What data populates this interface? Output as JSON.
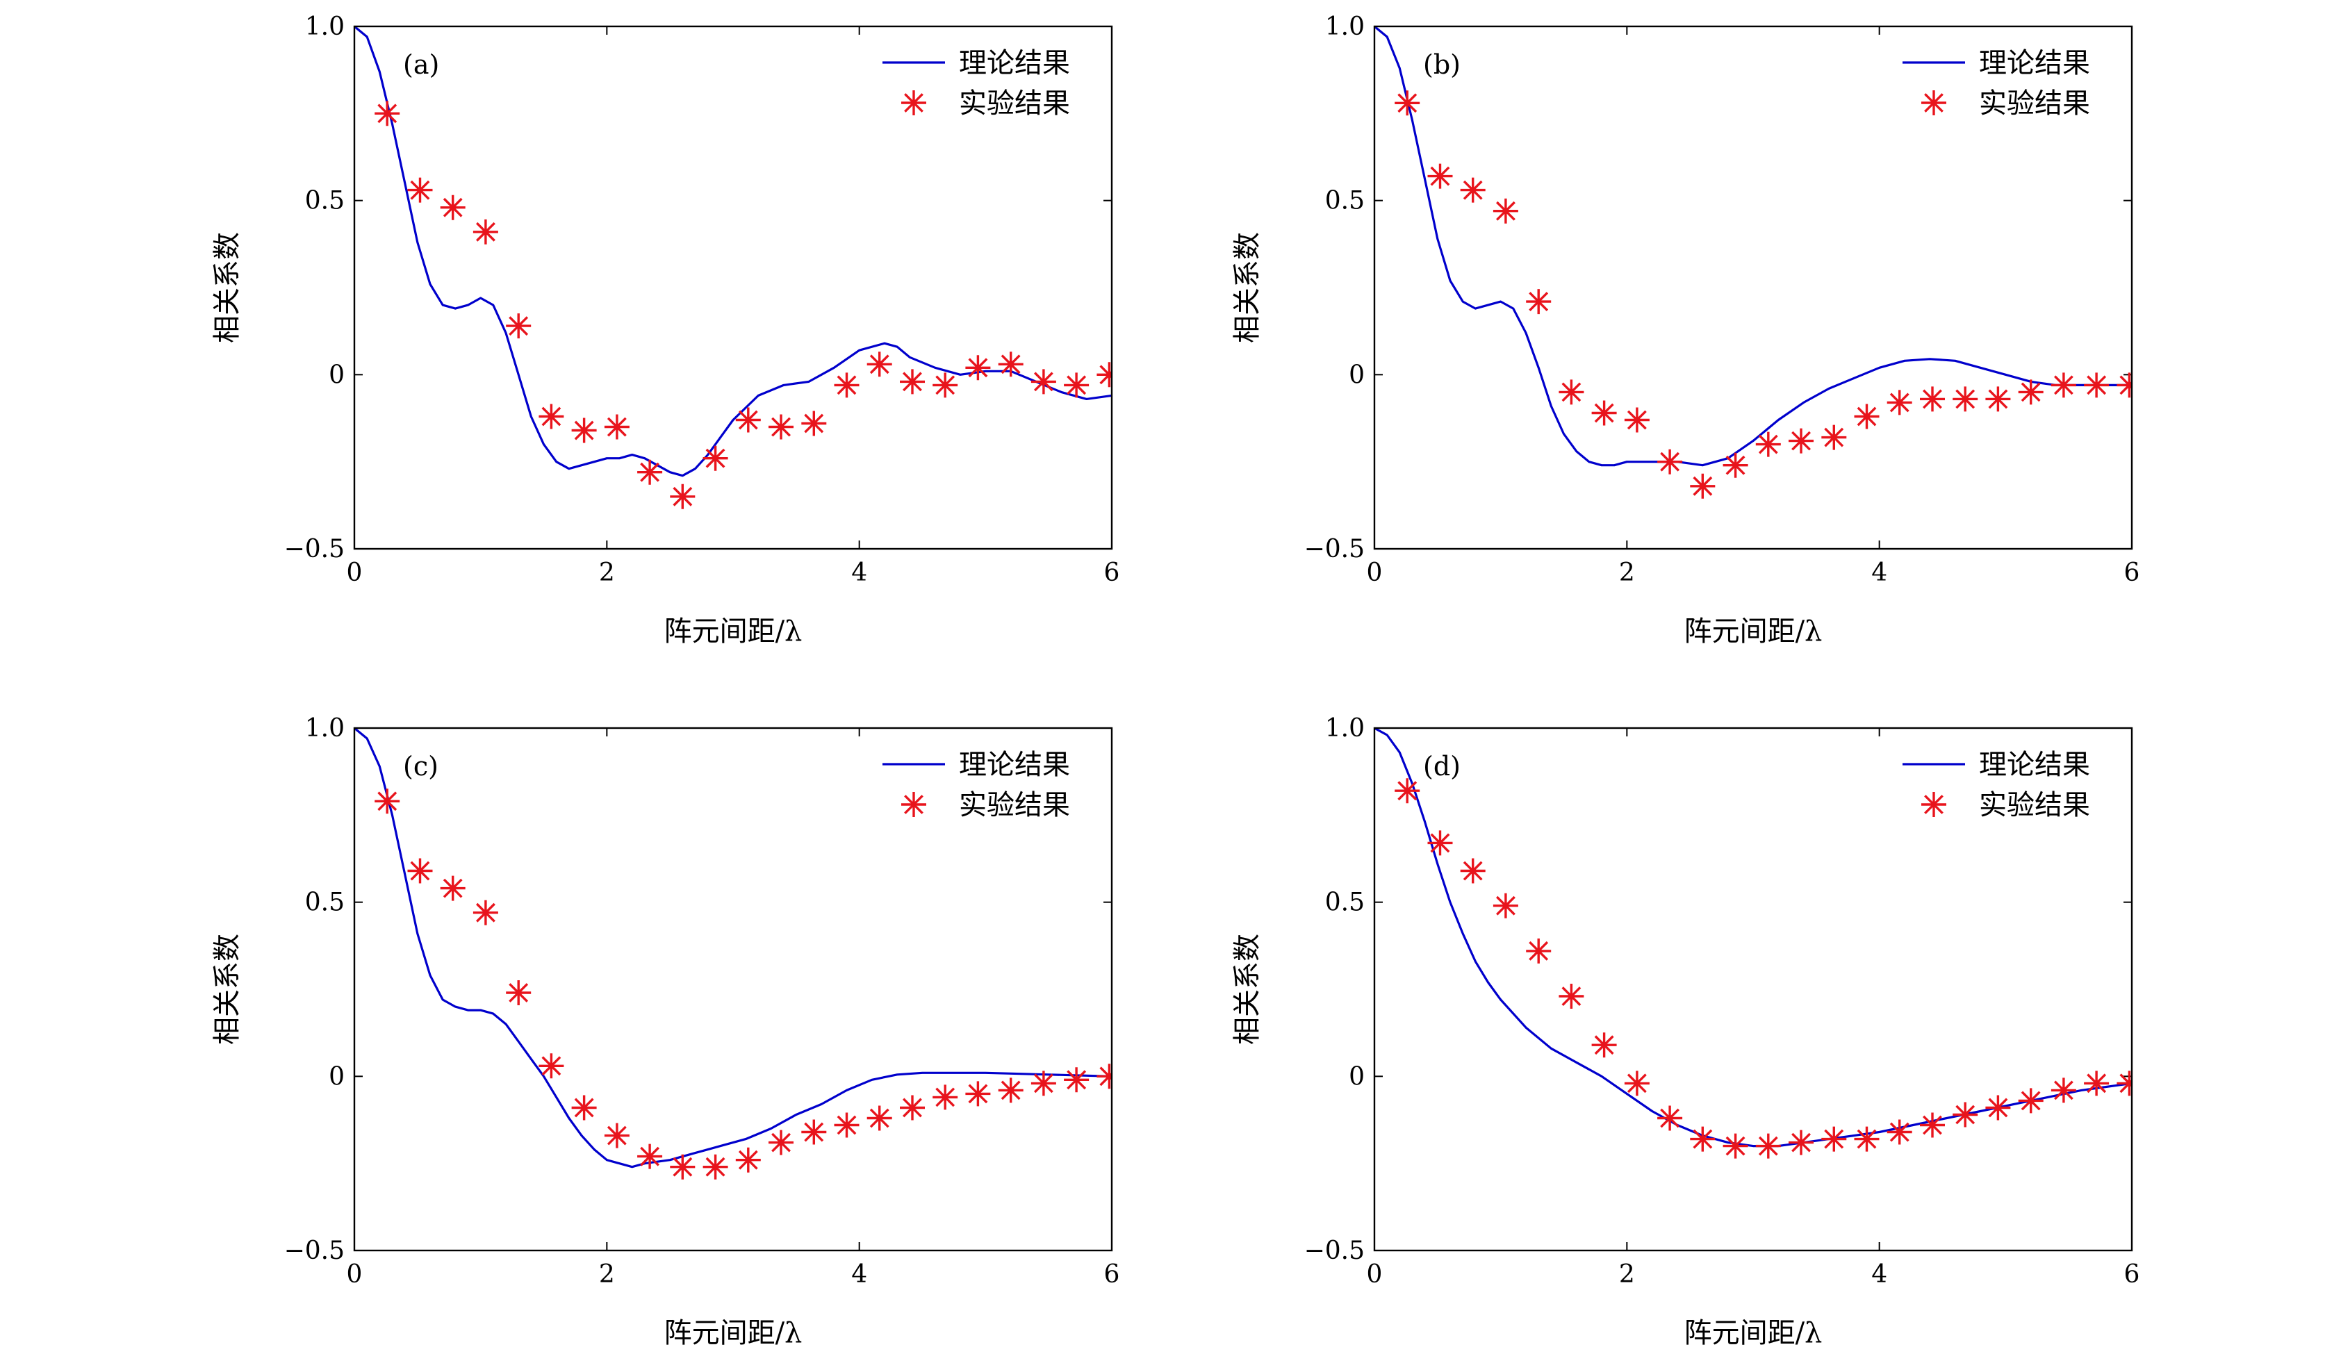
{
  "figure": {
    "series_colors": {
      "theory": "#0000cc",
      "experiment": "#e8141c"
    },
    "icons": {
      "legend_line": "blue-line",
      "legend_marker": "red-asterisk"
    }
  },
  "chart_data": [
    {
      "type": "line",
      "panel_label": "(a)",
      "xlabel": "阵元间距/λ",
      "ylabel": "相关系数",
      "xlim": [
        0,
        6
      ],
      "ylim": [
        -0.5,
        1.0
      ],
      "xticks": [
        {
          "v": 0,
          "label": "0"
        },
        {
          "v": 2,
          "label": "2"
        },
        {
          "v": 4,
          "label": "4"
        },
        {
          "v": 6,
          "label": "6"
        }
      ],
      "yticks": [
        {
          "v": -0.5,
          "label": "−0.5"
        },
        {
          "v": 0,
          "label": "0"
        },
        {
          "v": 0.5,
          "label": "0.5"
        },
        {
          "v": 1.0,
          "label": "1.0"
        }
      ],
      "legend_position": "top-right",
      "series": [
        {
          "name": "理论结果",
          "kind": "line",
          "x": [
            0,
            0.1,
            0.2,
            0.3,
            0.4,
            0.5,
            0.6,
            0.7,
            0.8,
            0.9,
            1.0,
            1.1,
            1.2,
            1.3,
            1.4,
            1.5,
            1.6,
            1.7,
            1.8,
            1.9,
            2.0,
            2.1,
            2.2,
            2.3,
            2.4,
            2.5,
            2.6,
            2.7,
            2.8,
            2.9,
            3.0,
            3.2,
            3.4,
            3.6,
            3.8,
            4.0,
            4.2,
            4.3,
            4.4,
            4.6,
            4.8,
            5.0,
            5.2,
            5.4,
            5.6,
            5.8,
            6.0
          ],
          "y": [
            1.0,
            0.97,
            0.87,
            0.72,
            0.55,
            0.38,
            0.26,
            0.2,
            0.19,
            0.2,
            0.22,
            0.2,
            0.12,
            0.0,
            -0.12,
            -0.2,
            -0.25,
            -0.27,
            -0.26,
            -0.25,
            -0.24,
            -0.24,
            -0.23,
            -0.24,
            -0.26,
            -0.28,
            -0.29,
            -0.27,
            -0.23,
            -0.18,
            -0.13,
            -0.06,
            -0.03,
            -0.02,
            0.02,
            0.07,
            0.09,
            0.08,
            0.05,
            0.02,
            0.0,
            0.01,
            0.01,
            -0.02,
            -0.05,
            -0.07,
            -0.06
          ]
        },
        {
          "name": "实验结果",
          "kind": "scatter",
          "x": [
            0.26,
            0.52,
            0.78,
            1.04,
            1.3,
            1.56,
            1.82,
            2.08,
            2.34,
            2.6,
            2.86,
            3.12,
            3.38,
            3.64,
            3.9,
            4.16,
            4.42,
            4.68,
            4.94,
            5.2,
            5.46,
            5.72,
            5.98
          ],
          "y": [
            0.75,
            0.53,
            0.48,
            0.41,
            0.14,
            -0.12,
            -0.16,
            -0.15,
            -0.28,
            -0.35,
            -0.24,
            -0.13,
            -0.15,
            -0.14,
            -0.03,
            0.03,
            -0.02,
            -0.03,
            0.02,
            0.03,
            -0.02,
            -0.03,
            0.0
          ]
        }
      ]
    },
    {
      "type": "line",
      "panel_label": "(b)",
      "xlabel": "阵元间距/λ",
      "ylabel": "相关系数",
      "xlim": [
        0,
        6
      ],
      "ylim": [
        -0.5,
        1.0
      ],
      "xticks": [
        {
          "v": 0,
          "label": "0"
        },
        {
          "v": 2,
          "label": "2"
        },
        {
          "v": 4,
          "label": "4"
        },
        {
          "v": 6,
          "label": "6"
        }
      ],
      "yticks": [
        {
          "v": -0.5,
          "label": "−0.5"
        },
        {
          "v": 0,
          "label": "0"
        },
        {
          "v": 0.5,
          "label": "0.5"
        },
        {
          "v": 1.0,
          "label": "1.0"
        }
      ],
      "legend_position": "top-right",
      "series": [
        {
          "name": "理论结果",
          "kind": "line",
          "x": [
            0,
            0.1,
            0.2,
            0.3,
            0.4,
            0.5,
            0.6,
            0.7,
            0.8,
            0.9,
            1.0,
            1.1,
            1.2,
            1.3,
            1.4,
            1.5,
            1.6,
            1.7,
            1.8,
            1.9,
            2.0,
            2.2,
            2.4,
            2.6,
            2.8,
            3.0,
            3.2,
            3.4,
            3.6,
            3.8,
            4.0,
            4.2,
            4.4,
            4.6,
            4.8,
            5.0,
            5.2,
            5.4,
            5.6,
            5.8,
            6.0
          ],
          "y": [
            1.0,
            0.97,
            0.88,
            0.73,
            0.56,
            0.39,
            0.27,
            0.21,
            0.19,
            0.2,
            0.21,
            0.19,
            0.12,
            0.02,
            -0.09,
            -0.17,
            -0.22,
            -0.25,
            -0.26,
            -0.26,
            -0.25,
            -0.25,
            -0.25,
            -0.26,
            -0.24,
            -0.19,
            -0.13,
            -0.08,
            -0.04,
            -0.01,
            0.02,
            0.04,
            0.045,
            0.04,
            0.02,
            0.0,
            -0.02,
            -0.03,
            -0.03,
            -0.03,
            -0.03
          ]
        },
        {
          "name": "实验结果",
          "kind": "scatter",
          "x": [
            0.26,
            0.52,
            0.78,
            1.04,
            1.3,
            1.56,
            1.82,
            2.08,
            2.34,
            2.6,
            2.86,
            3.12,
            3.38,
            3.64,
            3.9,
            4.16,
            4.42,
            4.68,
            4.94,
            5.2,
            5.46,
            5.72,
            5.98
          ],
          "y": [
            0.78,
            0.57,
            0.53,
            0.47,
            0.21,
            -0.05,
            -0.11,
            -0.13,
            -0.25,
            -0.32,
            -0.26,
            -0.2,
            -0.19,
            -0.18,
            -0.12,
            -0.08,
            -0.07,
            -0.07,
            -0.07,
            -0.05,
            -0.03,
            -0.03,
            -0.03
          ]
        }
      ]
    },
    {
      "type": "line",
      "panel_label": "(c)",
      "xlabel": "阵元间距/λ",
      "ylabel": "相关系数",
      "xlim": [
        0,
        6
      ],
      "ylim": [
        -0.5,
        1.0
      ],
      "xticks": [
        {
          "v": 0,
          "label": "0"
        },
        {
          "v": 2,
          "label": "2"
        },
        {
          "v": 4,
          "label": "4"
        },
        {
          "v": 6,
          "label": "6"
        }
      ],
      "yticks": [
        {
          "v": -0.5,
          "label": "−0.5"
        },
        {
          "v": 0,
          "label": "0"
        },
        {
          "v": 0.5,
          "label": "0.5"
        },
        {
          "v": 1.0,
          "label": "1.0"
        }
      ],
      "legend_position": "top-right",
      "series": [
        {
          "name": "理论结果",
          "kind": "line",
          "x": [
            0,
            0.1,
            0.2,
            0.3,
            0.4,
            0.5,
            0.6,
            0.7,
            0.8,
            0.9,
            1.0,
            1.1,
            1.2,
            1.3,
            1.4,
            1.5,
            1.6,
            1.7,
            1.8,
            1.9,
            2.0,
            2.1,
            2.2,
            2.3,
            2.5,
            2.7,
            2.9,
            3.1,
            3.3,
            3.5,
            3.7,
            3.9,
            4.1,
            4.3,
            4.5,
            5.0,
            5.5,
            6.0
          ],
          "y": [
            1.0,
            0.97,
            0.89,
            0.75,
            0.58,
            0.41,
            0.29,
            0.22,
            0.2,
            0.19,
            0.19,
            0.18,
            0.15,
            0.1,
            0.05,
            0.0,
            -0.06,
            -0.12,
            -0.17,
            -0.21,
            -0.24,
            -0.25,
            -0.26,
            -0.25,
            -0.24,
            -0.22,
            -0.2,
            -0.18,
            -0.15,
            -0.11,
            -0.08,
            -0.04,
            -0.01,
            0.005,
            0.01,
            0.01,
            0.005,
            0.0
          ]
        },
        {
          "name": "实验结果",
          "kind": "scatter",
          "x": [
            0.26,
            0.52,
            0.78,
            1.04,
            1.3,
            1.56,
            1.82,
            2.08,
            2.34,
            2.6,
            2.86,
            3.12,
            3.38,
            3.64,
            3.9,
            4.16,
            4.42,
            4.68,
            4.94,
            5.2,
            5.46,
            5.72,
            5.98
          ],
          "y": [
            0.79,
            0.59,
            0.54,
            0.47,
            0.24,
            0.03,
            -0.09,
            -0.17,
            -0.23,
            -0.26,
            -0.26,
            -0.24,
            -0.19,
            -0.16,
            -0.14,
            -0.12,
            -0.09,
            -0.06,
            -0.05,
            -0.04,
            -0.02,
            -0.01,
            0.0
          ]
        }
      ]
    },
    {
      "type": "line",
      "panel_label": "(d)",
      "xlabel": "阵元间距/λ",
      "ylabel": "相关系数",
      "xlim": [
        0,
        6
      ],
      "ylim": [
        -0.5,
        1.0
      ],
      "xticks": [
        {
          "v": 0,
          "label": "0"
        },
        {
          "v": 2,
          "label": "2"
        },
        {
          "v": 4,
          "label": "4"
        },
        {
          "v": 6,
          "label": "6"
        }
      ],
      "yticks": [
        {
          "v": -0.5,
          "label": "−0.5"
        },
        {
          "v": 0,
          "label": "0"
        },
        {
          "v": 0.5,
          "label": "0.5"
        },
        {
          "v": 1.0,
          "label": "1.0"
        }
      ],
      "legend_position": "top-right",
      "series": [
        {
          "name": "理论结果",
          "kind": "line",
          "x": [
            0,
            0.1,
            0.2,
            0.3,
            0.4,
            0.5,
            0.6,
            0.7,
            0.8,
            0.9,
            1.0,
            1.2,
            1.4,
            1.6,
            1.8,
            2.0,
            2.2,
            2.4,
            2.6,
            2.8,
            3.0,
            3.2,
            3.4,
            3.6,
            3.8,
            4.0,
            4.4,
            4.8,
            5.2,
            5.6,
            6.0
          ],
          "y": [
            1.0,
            0.98,
            0.93,
            0.84,
            0.73,
            0.61,
            0.5,
            0.41,
            0.33,
            0.27,
            0.22,
            0.14,
            0.08,
            0.04,
            0.0,
            -0.05,
            -0.1,
            -0.14,
            -0.17,
            -0.19,
            -0.2,
            -0.2,
            -0.19,
            -0.18,
            -0.17,
            -0.16,
            -0.13,
            -0.1,
            -0.07,
            -0.04,
            -0.02
          ]
        },
        {
          "name": "实验结果",
          "kind": "scatter",
          "x": [
            0.26,
            0.52,
            0.78,
            1.04,
            1.3,
            1.56,
            1.82,
            2.08,
            2.34,
            2.6,
            2.86,
            3.12,
            3.38,
            3.64,
            3.9,
            4.16,
            4.42,
            4.68,
            4.94,
            5.2,
            5.46,
            5.72,
            5.98
          ],
          "y": [
            0.82,
            0.67,
            0.59,
            0.49,
            0.36,
            0.23,
            0.09,
            -0.02,
            -0.12,
            -0.18,
            -0.2,
            -0.2,
            -0.19,
            -0.18,
            -0.18,
            -0.16,
            -0.14,
            -0.11,
            -0.09,
            -0.07,
            -0.04,
            -0.02,
            -0.02
          ]
        }
      ]
    }
  ]
}
